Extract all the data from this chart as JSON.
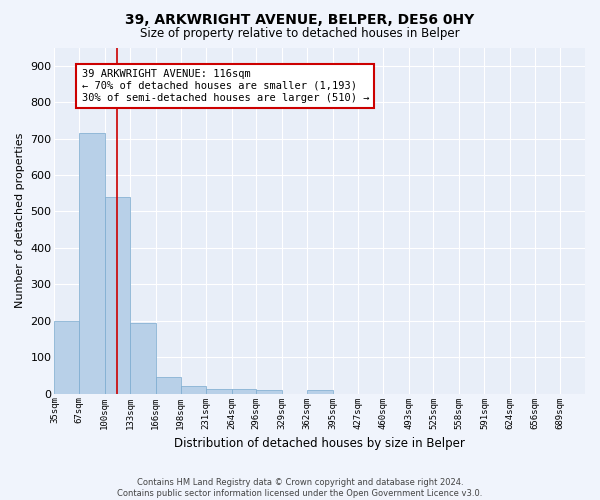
{
  "title1": "39, ARKWRIGHT AVENUE, BELPER, DE56 0HY",
  "title2": "Size of property relative to detached houses in Belper",
  "xlabel": "Distribution of detached houses by size in Belper",
  "ylabel": "Number of detached properties",
  "bin_edges": [
    35,
    67,
    100,
    133,
    166,
    198,
    231,
    264,
    296,
    329,
    362,
    395,
    427,
    460,
    493,
    525,
    558,
    591,
    624,
    656,
    689
  ],
  "bar_heights": [
    200,
    715,
    540,
    193,
    47,
    20,
    14,
    13,
    9,
    0,
    9,
    0,
    0,
    0,
    0,
    0,
    0,
    0,
    0,
    0
  ],
  "bar_color": "#b8d0e8",
  "bar_edge_color": "#7aaacf",
  "background_color": "#e8eef8",
  "fig_background_color": "#f0f4fc",
  "grid_color": "#ffffff",
  "red_line_x": 116,
  "annotation_text": "39 ARKWRIGHT AVENUE: 116sqm\n← 70% of detached houses are smaller (1,193)\n30% of semi-detached houses are larger (510) →",
  "annotation_box_color": "#ffffff",
  "annotation_box_edge": "#cc0000",
  "footnote": "Contains HM Land Registry data © Crown copyright and database right 2024.\nContains public sector information licensed under the Open Government Licence v3.0.",
  "ylim": [
    0,
    950
  ],
  "yticks": [
    0,
    100,
    200,
    300,
    400,
    500,
    600,
    700,
    800,
    900
  ]
}
